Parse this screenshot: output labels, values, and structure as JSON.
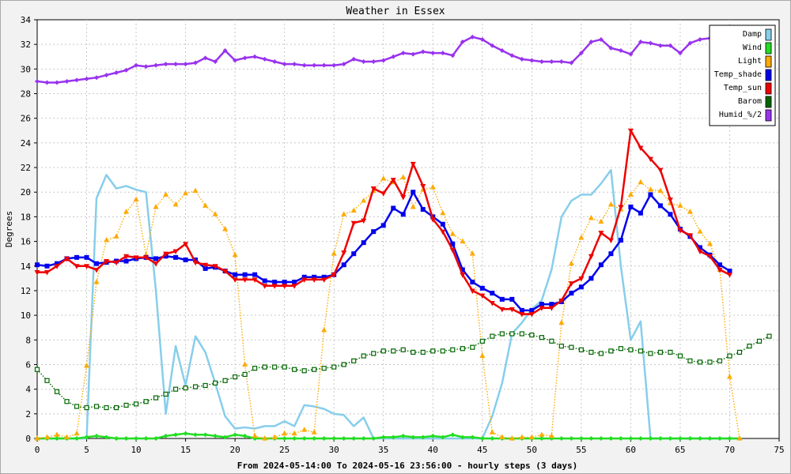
{
  "chart_data": {
    "type": "line",
    "title": "Weather in Essex",
    "xlabel": "From 2024-05-14:00 To 2024-05-16 23:56:00 - hourly steps (3 days)",
    "ylabel": "Degrees",
    "xlim": [
      0,
      75
    ],
    "ylim": [
      0,
      34
    ],
    "x_ticks": [
      0,
      5,
      10,
      15,
      20,
      25,
      30,
      35,
      40,
      45,
      50,
      55,
      60,
      65,
      70,
      75
    ],
    "y_ticks": [
      0,
      2,
      4,
      6,
      8,
      10,
      12,
      14,
      16,
      18,
      20,
      22,
      24,
      26,
      28,
      30,
      32,
      34
    ],
    "grid": true,
    "legend_position": "top-right",
    "series": [
      {
        "name": "Damp",
        "color": "#87ceeb",
        "style": "solid",
        "marker": "none",
        "values": [
          0,
          0,
          0,
          0,
          0,
          0,
          19.5,
          21.4,
          20.3,
          20.5,
          20.2,
          20.0,
          12.0,
          2.0,
          7.5,
          4.3,
          8.3,
          7.0,
          4.5,
          1.8,
          0.8,
          0.9,
          0.8,
          1.0,
          1.0,
          1.4,
          1.0,
          2.7,
          2.6,
          2.4,
          2.0,
          1.9,
          1.0,
          1.7,
          0,
          0,
          0,
          0,
          0,
          0,
          0,
          0,
          0,
          0,
          0,
          0,
          1.8,
          4.5,
          8.5,
          9.4,
          10.5,
          11.2,
          13.7,
          18.0,
          19.3,
          19.8,
          19.8,
          20.7,
          21.8,
          14.0,
          8.0,
          9.5,
          0,
          0,
          0,
          0,
          0,
          0,
          0,
          0,
          0,
          0
        ]
      },
      {
        "name": "Wind",
        "color": "#22dd22",
        "style": "solid",
        "marker": "diamond",
        "values": [
          0,
          0,
          0,
          0,
          0,
          0.1,
          0.2,
          0.1,
          0,
          0,
          0,
          0,
          0,
          0.2,
          0.3,
          0.4,
          0.3,
          0.3,
          0.2,
          0.1,
          0.3,
          0.2,
          0,
          0,
          0,
          0,
          0,
          0,
          0,
          0,
          0,
          0,
          0,
          0,
          0,
          0.1,
          0.1,
          0.2,
          0.1,
          0.1,
          0.2,
          0.1,
          0.3,
          0.1,
          0.1,
          0,
          0,
          0,
          0,
          0,
          0,
          0,
          0,
          0,
          0,
          0,
          0,
          0,
          0,
          0,
          0,
          0,
          0,
          0,
          0,
          0,
          0,
          0,
          0,
          0,
          0,
          0
        ]
      },
      {
        "name": "Light",
        "color": "#ffaa00",
        "style": "dotted",
        "marker": "triangle",
        "values": [
          0,
          0.1,
          0.3,
          0.1,
          0.4,
          5.9,
          12.7,
          16.1,
          16.4,
          18.4,
          19.4,
          14.9,
          18.8,
          19.8,
          19.0,
          19.9,
          20.1,
          18.9,
          18.2,
          17.0,
          14.9,
          6.0,
          0.2,
          0,
          0.1,
          0.4,
          0.4,
          0.7,
          0.5,
          8.8,
          15.0,
          18.2,
          18.5,
          19.3,
          20.1,
          21.1,
          20.8,
          21.2,
          18.8,
          20.2,
          20.4,
          18.3,
          16.6,
          16.0,
          15.0,
          6.7,
          0.5,
          0.1,
          0,
          0.1,
          0.1,
          0.3,
          0.2,
          9.4,
          14.2,
          16.3,
          17.9,
          17.6,
          19.0,
          18.6,
          19.8,
          20.8,
          20.2,
          20.1,
          19.1,
          18.9,
          18.4,
          16.8,
          15.8,
          13.7,
          5.0,
          0
        ]
      },
      {
        "name": "Temp_shade",
        "color": "#0000ee",
        "style": "solid",
        "marker": "square",
        "values": [
          14.1,
          14.0,
          14.2,
          14.6,
          14.7,
          14.7,
          14.2,
          14.3,
          14.4,
          14.4,
          14.6,
          14.7,
          14.6,
          14.8,
          14.7,
          14.5,
          14.5,
          13.8,
          13.9,
          13.6,
          13.3,
          13.3,
          13.3,
          12.8,
          12.7,
          12.7,
          12.7,
          13.1,
          13.1,
          13.1,
          13.3,
          14.1,
          15.0,
          15.9,
          16.8,
          17.3,
          18.7,
          18.2,
          20.0,
          18.6,
          18.0,
          17.4,
          15.8,
          13.7,
          12.7,
          12.2,
          11.8,
          11.3,
          11.3,
          10.4,
          10.4,
          10.9,
          10.9,
          11.1,
          11.8,
          12.3,
          13.0,
          14.1,
          15.0,
          16.1,
          18.8,
          18.3,
          19.8,
          18.9,
          18.2,
          17.0,
          16.4,
          15.5,
          14.9,
          14.1,
          13.6
        ]
      },
      {
        "name": "Temp_sun",
        "color": "#ee0000",
        "style": "solid",
        "marker": "triangle-down",
        "values": [
          13.5,
          13.5,
          14.0,
          14.6,
          14.0,
          14.0,
          13.7,
          14.4,
          14.3,
          14.8,
          14.7,
          14.7,
          14.2,
          15.0,
          15.2,
          15.8,
          14.3,
          14.1,
          14.0,
          13.6,
          12.9,
          12.9,
          12.9,
          12.4,
          12.4,
          12.4,
          12.4,
          12.9,
          12.9,
          12.9,
          13.3,
          15.1,
          17.5,
          17.7,
          20.3,
          19.9,
          21.0,
          19.6,
          22.3,
          20.5,
          17.8,
          16.8,
          15.3,
          13.3,
          12.0,
          11.6,
          11.0,
          10.5,
          10.5,
          10.1,
          10.1,
          10.6,
          10.6,
          11.2,
          12.6,
          13.0,
          14.8,
          16.7,
          16.1,
          18.8,
          25.0,
          23.6,
          22.7,
          21.8,
          19.4,
          16.9,
          16.5,
          15.2,
          14.8,
          13.7,
          13.3
        ]
      },
      {
        "name": "Barom",
        "color": "#006600",
        "style": "dotted",
        "marker": "square-open",
        "values": [
          5.6,
          4.7,
          3.8,
          3.0,
          2.6,
          2.5,
          2.6,
          2.5,
          2.5,
          2.7,
          2.8,
          3.0,
          3.3,
          3.6,
          4.0,
          4.1,
          4.2,
          4.3,
          4.5,
          4.7,
          5.0,
          5.2,
          5.7,
          5.8,
          5.8,
          5.8,
          5.6,
          5.5,
          5.6,
          5.7,
          5.8,
          6.0,
          6.3,
          6.7,
          6.9,
          7.1,
          7.1,
          7.2,
          7.0,
          7.0,
          7.1,
          7.1,
          7.2,
          7.3,
          7.4,
          7.9,
          8.3,
          8.5,
          8.5,
          8.5,
          8.4,
          8.2,
          7.9,
          7.5,
          7.4,
          7.2,
          7.0,
          6.9,
          7.1,
          7.3,
          7.2,
          7.1,
          6.9,
          7.0,
          7.0,
          6.7,
          6.3,
          6.2,
          6.2,
          6.3,
          6.7,
          7.0,
          7.5,
          7.9,
          8.3
        ]
      },
      {
        "name": "Humid_%/2",
        "color": "#9933ee",
        "style": "solid",
        "marker": "diamond",
        "values": [
          29.0,
          28.9,
          28.9,
          29.0,
          29.1,
          29.2,
          29.3,
          29.5,
          29.7,
          29.9,
          30.3,
          30.2,
          30.3,
          30.4,
          30.4,
          30.4,
          30.5,
          30.9,
          30.6,
          31.5,
          30.7,
          30.9,
          31.0,
          30.8,
          30.6,
          30.4,
          30.4,
          30.3,
          30.3,
          30.3,
          30.3,
          30.4,
          30.8,
          30.6,
          30.6,
          30.7,
          31.0,
          31.3,
          31.2,
          31.4,
          31.3,
          31.3,
          31.1,
          32.2,
          32.6,
          32.4,
          31.9,
          31.5,
          31.1,
          30.8,
          30.7,
          30.6,
          30.6,
          30.6,
          30.5,
          31.3,
          32.2,
          32.4,
          31.7,
          31.5,
          31.2,
          32.2,
          32.1,
          31.9,
          31.9,
          31.3,
          32.1,
          32.4,
          32.5
        ]
      }
    ]
  }
}
